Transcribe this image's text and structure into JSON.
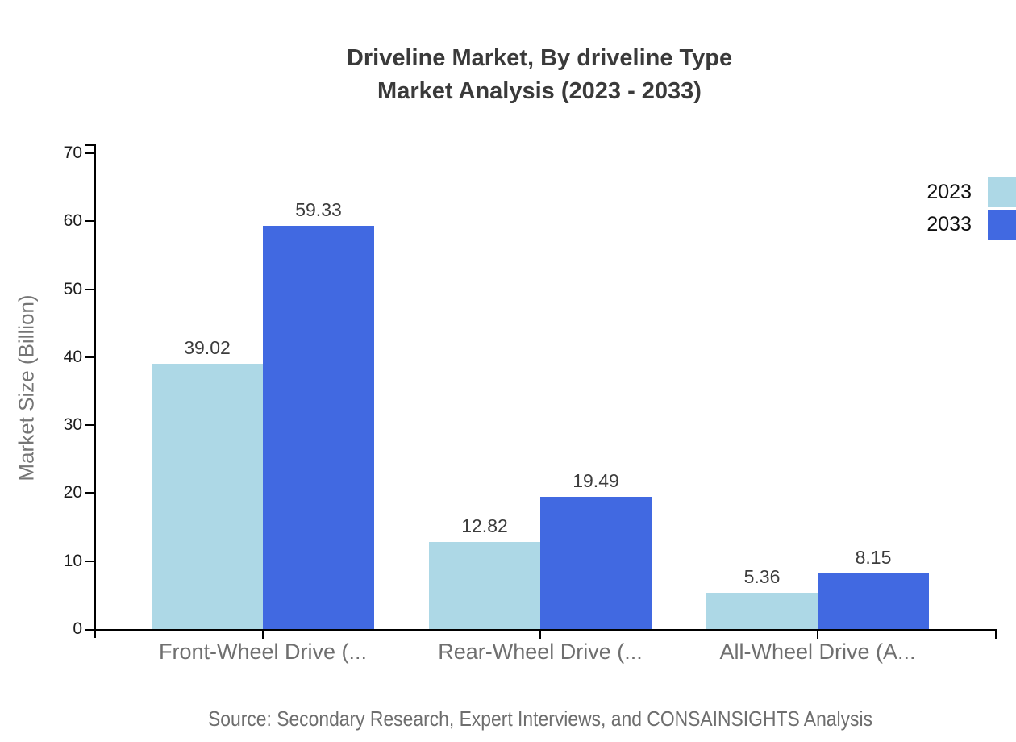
{
  "title": {
    "line1": "Driveline Market, By driveline Type",
    "line2": "Market Analysis (2023 - 2033)"
  },
  "footer": {
    "source": "Source: Secondary Research, Expert Interviews, and CONSAINSIGHTS Analysis"
  },
  "colors": {
    "series_2023": "#ADD8E6",
    "series_2033": "#4169E1",
    "axis_line": "#000000"
  },
  "chart_data": {
    "type": "bar",
    "title": "Driveline Market, By driveline Type — Market Analysis (2023 - 2033)",
    "categories": [
      "Front-Wheel Drive (...",
      "Rear-Wheel Drive (...",
      "All-Wheel Drive (A..."
    ],
    "series": [
      {
        "name": "2023",
        "color": "#ADD8E6",
        "values": [
          39.02,
          12.82,
          5.36
        ]
      },
      {
        "name": "2033",
        "color": "#4169E1",
        "values": [
          59.33,
          19.49,
          8.15
        ]
      }
    ],
    "xlabel": "",
    "ylabel": "Market Size (Billion)",
    "ylim": [
      0,
      70
    ],
    "yticks": [
      0,
      10,
      20,
      30,
      40,
      50,
      60,
      70
    ],
    "grid": false,
    "legend_position": "top-right",
    "value_labels_shown": true,
    "value_label_decimals": 2
  }
}
